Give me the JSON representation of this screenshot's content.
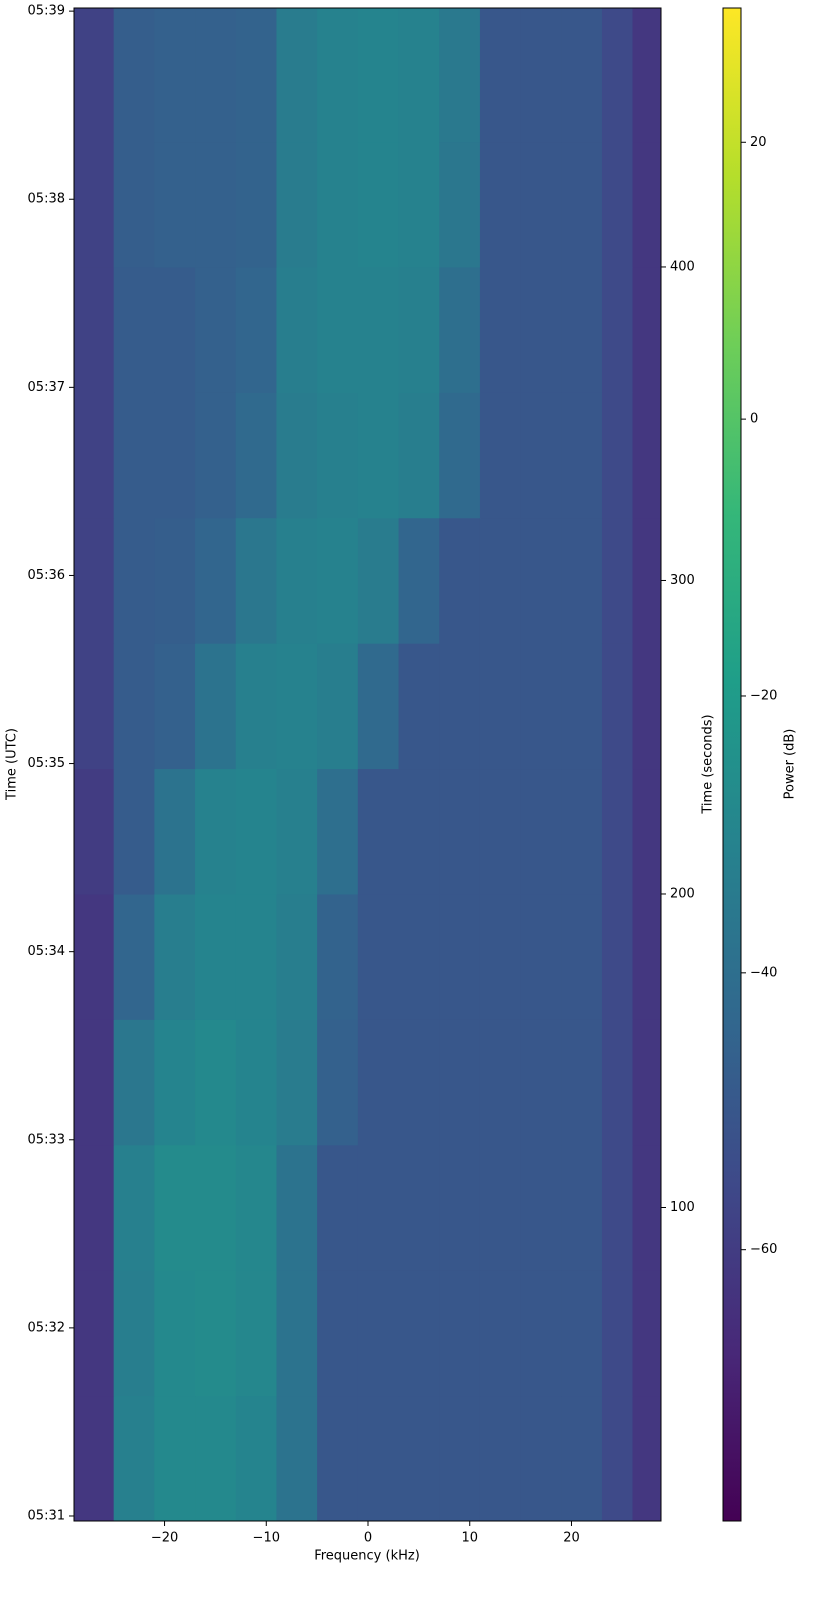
{
  "chart_data": {
    "type": "heatmap",
    "xlabel": "Frequency (kHz)",
    "ylabel": "Time (UTC)",
    "y2label": "Time (seconds)",
    "colorbar_label": "Power (dB)",
    "cmap": "viridis",
    "xlim": [
      -28.9,
      28.8
    ],
    "xticks": [
      {
        "value": -20,
        "label": "−20"
      },
      {
        "value": -10,
        "label": "−10"
      },
      0,
      10,
      20
    ],
    "ylim": [
      0,
      482.6
    ],
    "yticks": [
      {
        "value": 1.6,
        "label": "05:31"
      },
      {
        "value": 61.6,
        "label": "05:32"
      },
      {
        "value": 121.6,
        "label": "05:33"
      },
      {
        "value": 181.6,
        "label": "05:34"
      },
      {
        "value": 241.6,
        "label": "05:35"
      },
      {
        "value": 301.6,
        "label": "05:36"
      },
      {
        "value": 361.6,
        "label": "05:37"
      },
      {
        "value": 421.6,
        "label": "05:38"
      },
      {
        "value": 481.6,
        "label": "05:39"
      }
    ],
    "y2lim": [
      0,
      482.6
    ],
    "y2ticks": [
      100,
      200,
      300,
      400
    ],
    "clim": [
      -79.6,
      29.7
    ],
    "cticks": [
      {
        "value": -60,
        "label": "−60"
      },
      {
        "value": -40,
        "label": "−40"
      },
      {
        "value": -20,
        "label": "−20"
      },
      0,
      20
    ],
    "x_bins": [
      -28.9,
      -25,
      -21,
      -17,
      -13,
      -9,
      -5,
      -1,
      3,
      7,
      11,
      15,
      19,
      23,
      26,
      28.8
    ],
    "y_bins": [
      0,
      40,
      80,
      120,
      160,
      200,
      240,
      280,
      320,
      360,
      400,
      440,
      482.6
    ],
    "z": [
      [
        -62,
        -32,
        -28,
        -28,
        -30,
        -38,
        -50,
        -50,
        -50,
        -50,
        -50,
        -50,
        -50,
        -55,
        -62
      ],
      [
        -62,
        -33,
        -28,
        -27,
        -29,
        -38,
        -50,
        -50,
        -50,
        -50,
        -50,
        -50,
        -50,
        -55,
        -62
      ],
      [
        -62,
        -32,
        -27,
        -27,
        -29,
        -38,
        -50,
        -50,
        -50,
        -50,
        -50,
        -50,
        -50,
        -55,
        -62
      ],
      [
        -62,
        -36,
        -30,
        -28,
        -30,
        -34,
        -46,
        -50,
        -50,
        -50,
        -50,
        -50,
        -50,
        -55,
        -62
      ],
      [
        -62,
        -44,
        -33,
        -30,
        -30,
        -33,
        -45,
        -50,
        -50,
        -50,
        -50,
        -50,
        -50,
        -55,
        -62
      ],
      [
        -60,
        -48,
        -38,
        -31,
        -30,
        -32,
        -40,
        -50,
        -50,
        -50,
        -50,
        -50,
        -50,
        -55,
        -62
      ],
      [
        -58,
        -48,
        -46,
        -38,
        -32,
        -31,
        -33,
        -42,
        -50,
        -50,
        -50,
        -50,
        -50,
        -55,
        -62
      ],
      [
        -58,
        -48,
        -47,
        -44,
        -36,
        -32,
        -31,
        -34,
        -44,
        -50,
        -50,
        -50,
        -50,
        -55,
        -62
      ],
      [
        -58,
        -48,
        -48,
        -46,
        -42,
        -34,
        -32,
        -31,
        -33,
        -42,
        -50,
        -50,
        -50,
        -55,
        -62
      ],
      [
        -58,
        -48,
        -48,
        -46,
        -44,
        -33,
        -31,
        -31,
        -32,
        -40,
        -50,
        -50,
        -50,
        -55,
        -62
      ],
      [
        -58,
        -47,
        -46,
        -46,
        -45,
        -34,
        -31,
        -30,
        -31,
        -36,
        -50,
        -50,
        -50,
        -55,
        -62
      ],
      [
        -58,
        -47,
        -46,
        -46,
        -45,
        -34,
        -31,
        -30,
        -31,
        -35,
        -50,
        -50,
        -50,
        -55,
        -62
      ]
    ]
  }
}
